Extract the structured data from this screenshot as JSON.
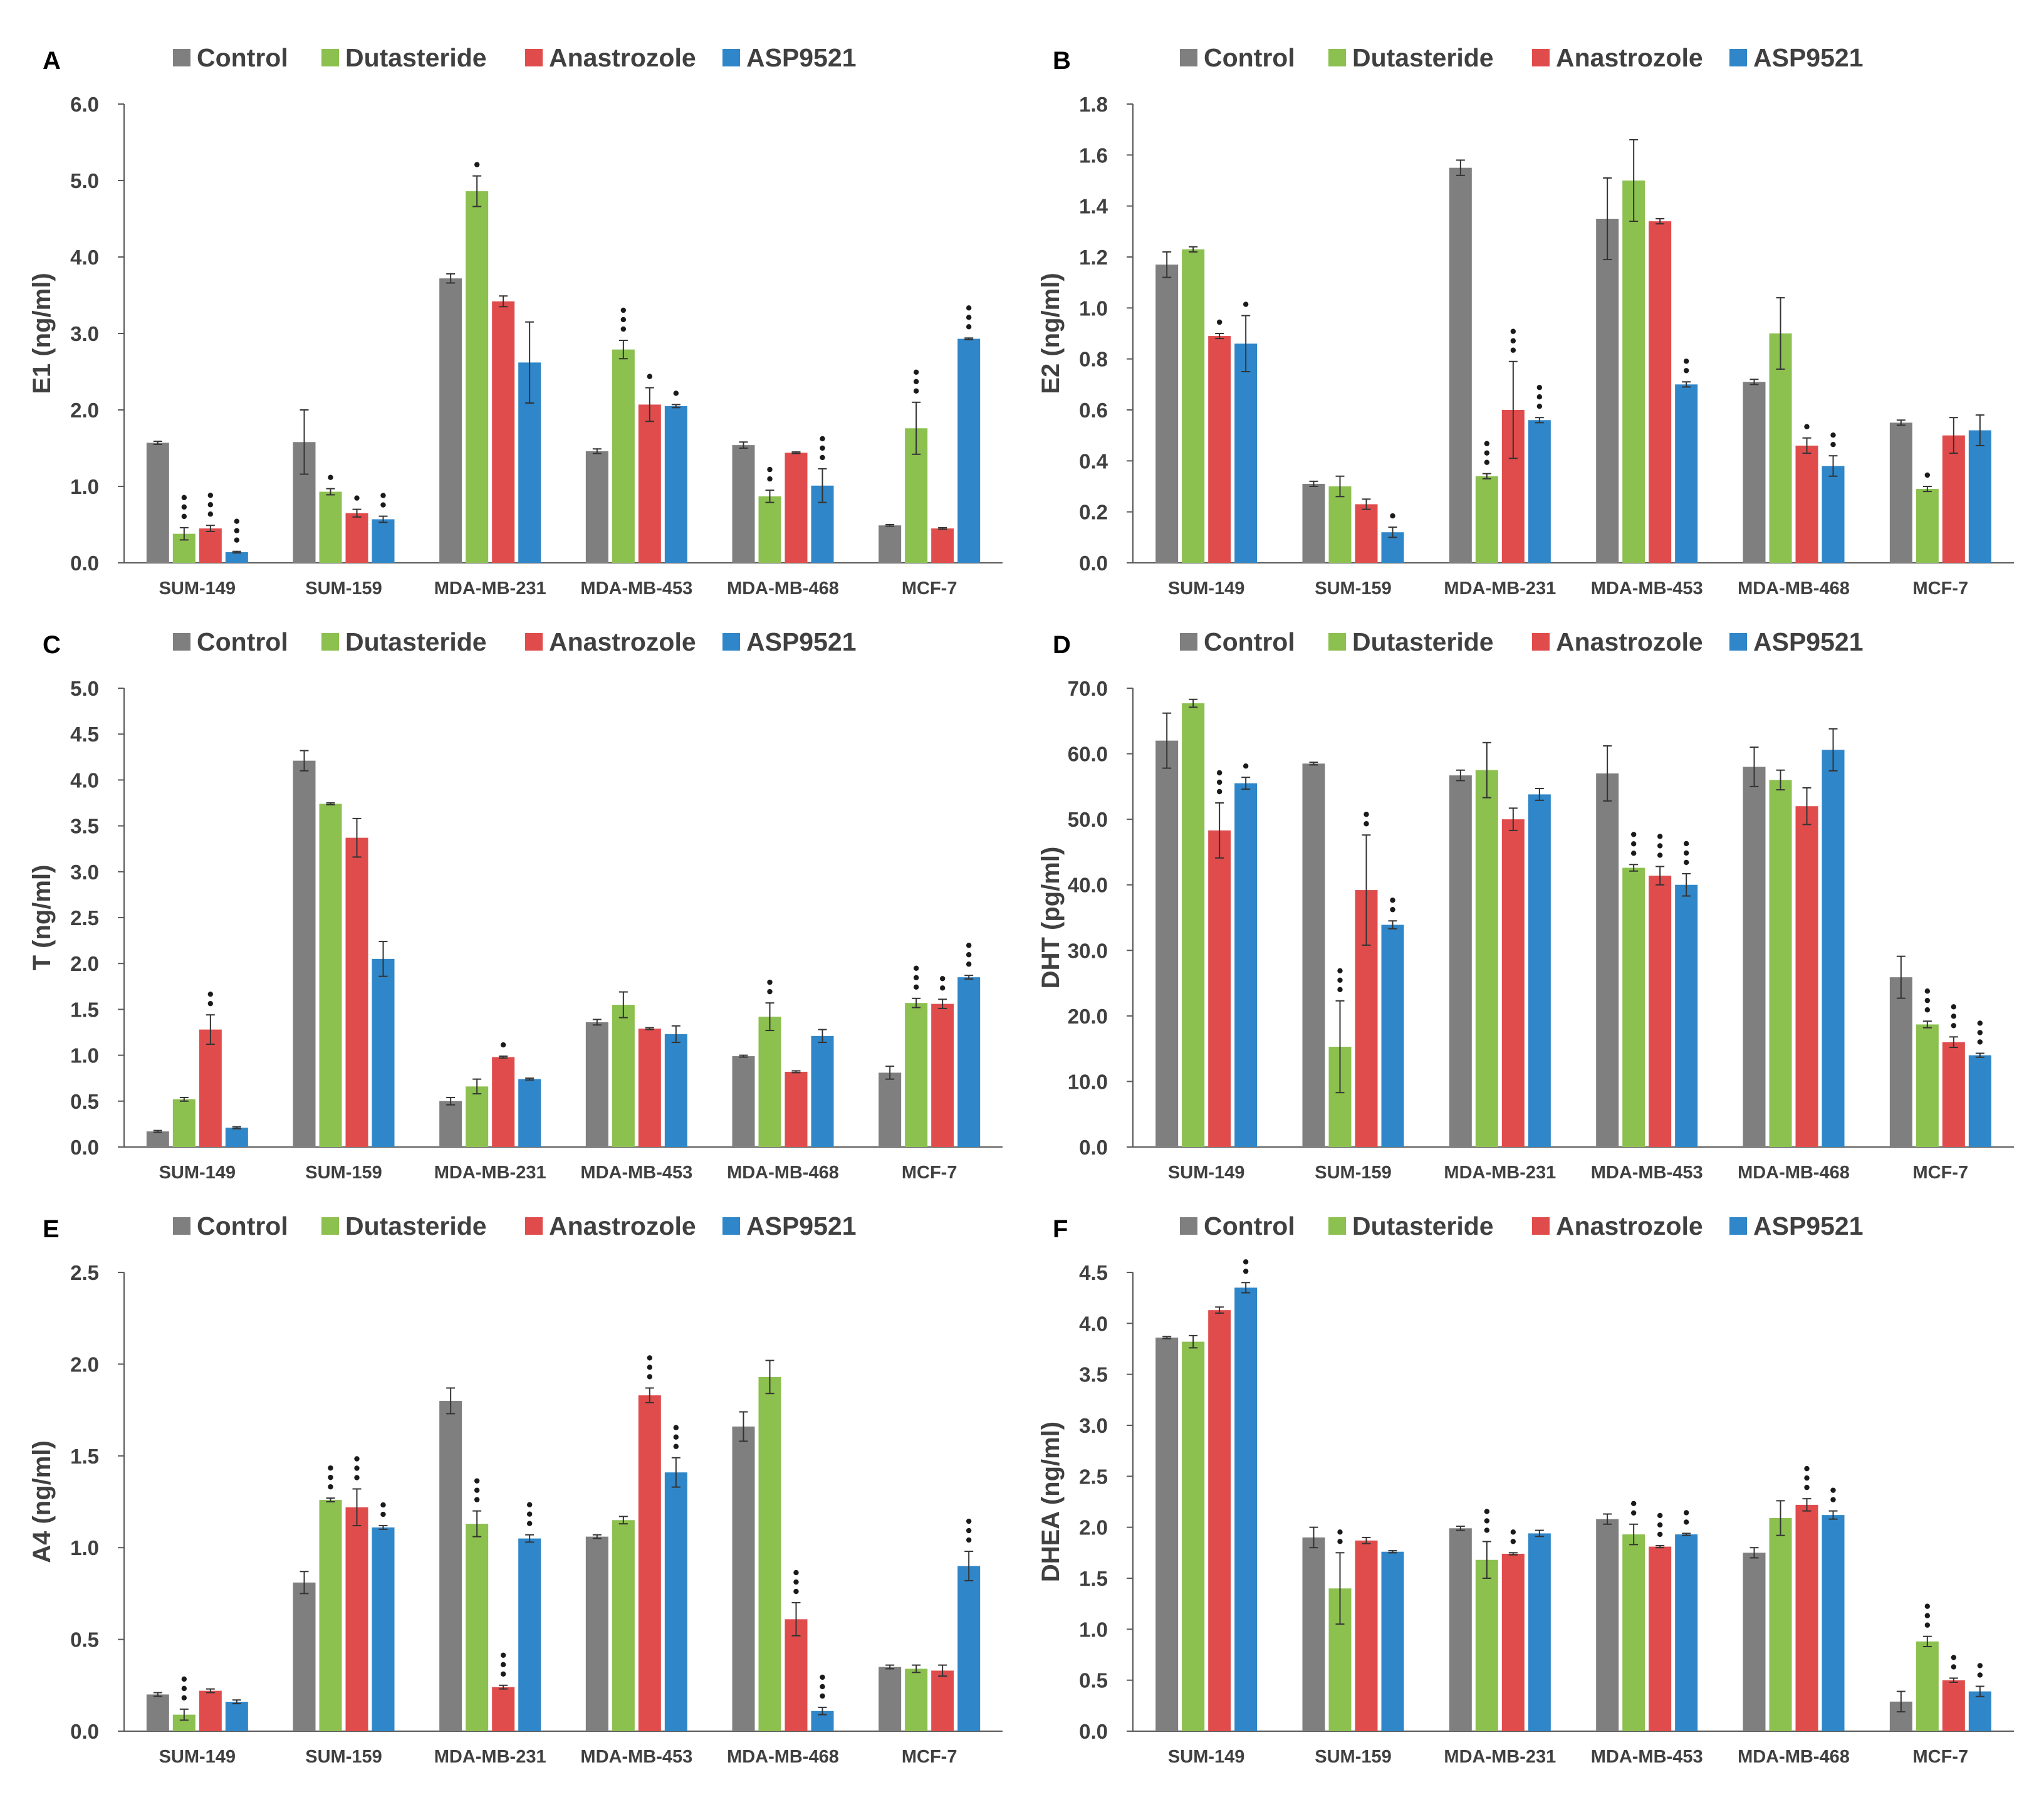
{
  "legend": [
    "Control",
    "Dutasteride",
    "Anastrozole",
    "ASP9521"
  ],
  "colors": [
    "#7f7f7f",
    "#8cc04f",
    "#e04c4c",
    "#2f86c8"
  ],
  "chart_data": [
    {
      "panel": "A",
      "type": "bar",
      "ylabel": "E1 (ng/ml)",
      "ylim": [
        0,
        6
      ],
      "yticks": [
        "0.0",
        "1.0",
        "2.0",
        "3.0",
        "4.0",
        "5.0",
        "6.0"
      ],
      "categories": [
        "SUM-149",
        "SUM-159",
        "MDA-MB-231",
        "MDA-MB-453",
        "MDA-MB-468",
        "MCF-7"
      ],
      "series": [
        {
          "name": "Control",
          "values": [
            1.57,
            1.58,
            3.72,
            1.46,
            1.54,
            0.49
          ],
          "errors": [
            0.02,
            0.42,
            0.06,
            0.03,
            0.04,
            0.01
          ],
          "sig": [
            0,
            0,
            0,
            0,
            0,
            0
          ]
        },
        {
          "name": "Dutasteride",
          "values": [
            0.38,
            0.93,
            4.86,
            2.79,
            0.87,
            1.76
          ],
          "errors": [
            0.08,
            0.04,
            0.2,
            0.12,
            0.08,
            0.34
          ],
          "sig": [
            3,
            1,
            1,
            3,
            2,
            3
          ]
        },
        {
          "name": "Anastrozole",
          "values": [
            0.45,
            0.65,
            3.42,
            2.07,
            1.44,
            0.45
          ],
          "errors": [
            0.04,
            0.05,
            0.07,
            0.22,
            0.01,
            0.01
          ],
          "sig": [
            3,
            1,
            0,
            1,
            0,
            0
          ]
        },
        {
          "name": "ASP9521",
          "values": [
            0.14,
            0.57,
            2.62,
            2.05,
            1.01,
            2.93
          ],
          "errors": [
            0.01,
            0.04,
            0.53,
            0.02,
            0.22,
            0.01
          ],
          "sig": [
            3,
            2,
            0,
            1,
            3,
            3
          ]
        }
      ]
    },
    {
      "panel": "B",
      "type": "bar",
      "ylabel": "E2 (ng/ml)",
      "ylim": [
        0,
        1.8
      ],
      "yticks": [
        "0.0",
        "0.2",
        "0.4",
        "0.6",
        "0.8",
        "1.0",
        "1.2",
        "1.4",
        "1.6",
        "1.8"
      ],
      "categories": [
        "SUM-149",
        "SUM-159",
        "MDA-MB-231",
        "MDA-MB-453",
        "MDA-MB-468",
        "MCF-7"
      ],
      "series": [
        {
          "name": "Control",
          "values": [
            1.17,
            0.31,
            1.55,
            1.35,
            0.71,
            0.55
          ],
          "errors": [
            0.05,
            0.01,
            0.03,
            0.16,
            0.01,
            0.01
          ],
          "sig": [
            0,
            0,
            0,
            0,
            0,
            0
          ]
        },
        {
          "name": "Dutasteride",
          "values": [
            1.23,
            0.3,
            0.34,
            1.5,
            0.9,
            0.29
          ],
          "errors": [
            0.01,
            0.04,
            0.01,
            0.16,
            0.14,
            0.01
          ],
          "sig": [
            0,
            0,
            3,
            0,
            0,
            1
          ]
        },
        {
          "name": "Anastrozole",
          "values": [
            0.89,
            0.23,
            0.6,
            1.34,
            0.46,
            0.5
          ],
          "errors": [
            0.01,
            0.02,
            0.19,
            0.01,
            0.03,
            0.07
          ],
          "sig": [
            1,
            0,
            3,
            0,
            1,
            0
          ]
        },
        {
          "name": "ASP9521",
          "values": [
            0.86,
            0.12,
            0.56,
            0.7,
            0.38,
            0.52
          ],
          "errors": [
            0.11,
            0.02,
            0.01,
            0.01,
            0.04,
            0.06
          ],
          "sig": [
            1,
            1,
            3,
            2,
            2,
            0
          ]
        }
      ]
    },
    {
      "panel": "C",
      "type": "bar",
      "ylabel": "T (ng/ml)",
      "ylim": [
        0,
        5
      ],
      "yticks": [
        "0.0",
        "0.5",
        "1.0",
        "1.5",
        "2.0",
        "2.5",
        "3.0",
        "3.5",
        "4.0",
        "4.5",
        "5.0"
      ],
      "categories": [
        "SUM-149",
        "SUM-159",
        "MDA-MB-231",
        "MDA-MB-453",
        "MDA-MB-468",
        "MCF-7"
      ],
      "series": [
        {
          "name": "Control",
          "values": [
            0.17,
            4.21,
            0.5,
            1.36,
            0.99,
            0.81
          ],
          "errors": [
            0.01,
            0.11,
            0.04,
            0.03,
            0.01,
            0.07
          ],
          "sig": [
            0,
            0,
            0,
            0,
            0,
            0
          ]
        },
        {
          "name": "Dutasteride",
          "values": [
            0.52,
            3.74,
            0.66,
            1.55,
            1.42,
            1.57
          ],
          "errors": [
            0.02,
            0.01,
            0.08,
            0.14,
            0.15,
            0.05
          ],
          "sig": [
            0,
            0,
            0,
            0,
            2,
            3
          ]
        },
        {
          "name": "Anastrozole",
          "values": [
            1.28,
            3.37,
            0.98,
            1.29,
            0.82,
            1.56
          ],
          "errors": [
            0.16,
            0.21,
            0.01,
            0.01,
            0.01,
            0.05
          ],
          "sig": [
            2,
            0,
            1,
            0,
            0,
            2
          ]
        },
        {
          "name": "ASP9521",
          "values": [
            0.21,
            2.05,
            0.74,
            1.23,
            1.21,
            1.85
          ],
          "errors": [
            0.01,
            0.19,
            0.01,
            0.09,
            0.07,
            0.02
          ],
          "sig": [
            0,
            0,
            0,
            0,
            0,
            3
          ]
        }
      ]
    },
    {
      "panel": "D",
      "type": "bar",
      "ylabel": "DHT (pg/ml)",
      "ylim": [
        0,
        70
      ],
      "yticks": [
        "0.0",
        "10.0",
        "20.0",
        "30.0",
        "40.0",
        "50.0",
        "60.0",
        "70.0"
      ],
      "categories": [
        "SUM-149",
        "SUM-159",
        "MDA-MB-231",
        "MDA-MB-453",
        "MDA-MB-468",
        "MCF-7"
      ],
      "series": [
        {
          "name": "Control",
          "values": [
            62.0,
            58.5,
            56.7,
            57.0,
            58.0,
            25.9
          ],
          "errors": [
            4.2,
            0.2,
            0.8,
            4.2,
            3.0,
            3.2
          ],
          "sig": [
            0,
            0,
            0,
            0,
            0,
            0
          ]
        },
        {
          "name": "Dutasteride",
          "values": [
            67.7,
            15.3,
            57.5,
            42.6,
            56.0,
            18.7
          ],
          "errors": [
            0.6,
            7.0,
            4.2,
            0.5,
            1.5,
            0.5
          ],
          "sig": [
            0,
            3,
            0,
            3,
            0,
            3
          ]
        },
        {
          "name": "Anastrozole",
          "values": [
            48.3,
            39.2,
            50.0,
            41.4,
            52.0,
            16.0
          ],
          "errors": [
            4.2,
            8.4,
            1.7,
            1.4,
            2.8,
            0.8
          ],
          "sig": [
            3,
            2,
            0,
            3,
            0,
            3
          ]
        },
        {
          "name": "ASP9521",
          "values": [
            55.5,
            33.9,
            53.8,
            40.0,
            60.6,
            14.0
          ],
          "errors": [
            0.9,
            0.6,
            0.9,
            1.7,
            3.2,
            0.3
          ],
          "sig": [
            1,
            2,
            0,
            3,
            0,
            3
          ]
        }
      ]
    },
    {
      "panel": "E",
      "type": "bar",
      "ylabel": "A4 (ng/ml)",
      "ylim": [
        0,
        2.5
      ],
      "yticks": [
        "0.0",
        "0.5",
        "1.0",
        "1.5",
        "2.0",
        "2.5"
      ],
      "categories": [
        "SUM-149",
        "SUM-159",
        "MDA-MB-231",
        "MDA-MB-453",
        "MDA-MB-468",
        "MCF-7"
      ],
      "series": [
        {
          "name": "Control",
          "values": [
            0.2,
            0.81,
            1.8,
            1.06,
            1.66,
            0.35
          ],
          "errors": [
            0.01,
            0.06,
            0.07,
            0.01,
            0.08,
            0.01
          ],
          "sig": [
            0,
            0,
            0,
            0,
            0,
            0
          ]
        },
        {
          "name": "Dutasteride",
          "values": [
            0.09,
            1.26,
            1.13,
            1.15,
            1.93,
            0.34
          ],
          "errors": [
            0.03,
            0.01,
            0.07,
            0.02,
            0.09,
            0.02
          ],
          "sig": [
            3,
            3,
            3,
            0,
            0,
            0
          ]
        },
        {
          "name": "Anastrozole",
          "values": [
            0.22,
            1.22,
            0.24,
            1.83,
            0.61,
            0.33
          ],
          "errors": [
            0.01,
            0.1,
            0.01,
            0.04,
            0.09,
            0.03
          ],
          "sig": [
            0,
            3,
            3,
            3,
            3,
            0
          ]
        },
        {
          "name": "ASP9521",
          "values": [
            0.16,
            1.11,
            1.05,
            1.41,
            0.11,
            0.9
          ],
          "errors": [
            0.01,
            0.01,
            0.02,
            0.08,
            0.02,
            0.08
          ],
          "sig": [
            0,
            2,
            3,
            3,
            3,
            3
          ]
        }
      ]
    },
    {
      "panel": "F",
      "type": "bar",
      "ylabel": "DHEA (ng/ml)",
      "ylim": [
        0,
        4.5
      ],
      "yticks": [
        "0.0",
        "0.5",
        "1.0",
        "1.5",
        "2.0",
        "2.5",
        "3.0",
        "3.5",
        "4.0",
        "4.5"
      ],
      "categories": [
        "SUM-149",
        "SUM-159",
        "MDA-MB-231",
        "MDA-MB-453",
        "MDA-MB-468",
        "MCF-7"
      ],
      "series": [
        {
          "name": "Control",
          "values": [
            3.86,
            1.9,
            1.99,
            2.08,
            1.75,
            0.29
          ],
          "errors": [
            0.01,
            0.1,
            0.02,
            0.05,
            0.05,
            0.1
          ],
          "sig": [
            0,
            0,
            0,
            0,
            0,
            0
          ]
        },
        {
          "name": "Dutasteride",
          "values": [
            3.82,
            1.4,
            1.68,
            1.93,
            2.09,
            0.88
          ],
          "errors": [
            0.06,
            0.35,
            0.18,
            0.1,
            0.17,
            0.05
          ],
          "sig": [
            0,
            2,
            3,
            2,
            0,
            3
          ]
        },
        {
          "name": "Anastrozole",
          "values": [
            4.13,
            1.87,
            1.74,
            1.81,
            2.22,
            0.5
          ],
          "errors": [
            0.03,
            0.03,
            0.01,
            0.01,
            0.06,
            0.02
          ],
          "sig": [
            0,
            0,
            2,
            3,
            3,
            2
          ]
        },
        {
          "name": "ASP9521",
          "values": [
            4.35,
            1.76,
            1.94,
            1.93,
            2.12,
            0.39
          ],
          "errors": [
            0.05,
            0.01,
            0.03,
            0.01,
            0.04,
            0.05
          ],
          "sig": [
            2,
            0,
            0,
            2,
            2,
            2
          ]
        }
      ]
    }
  ]
}
